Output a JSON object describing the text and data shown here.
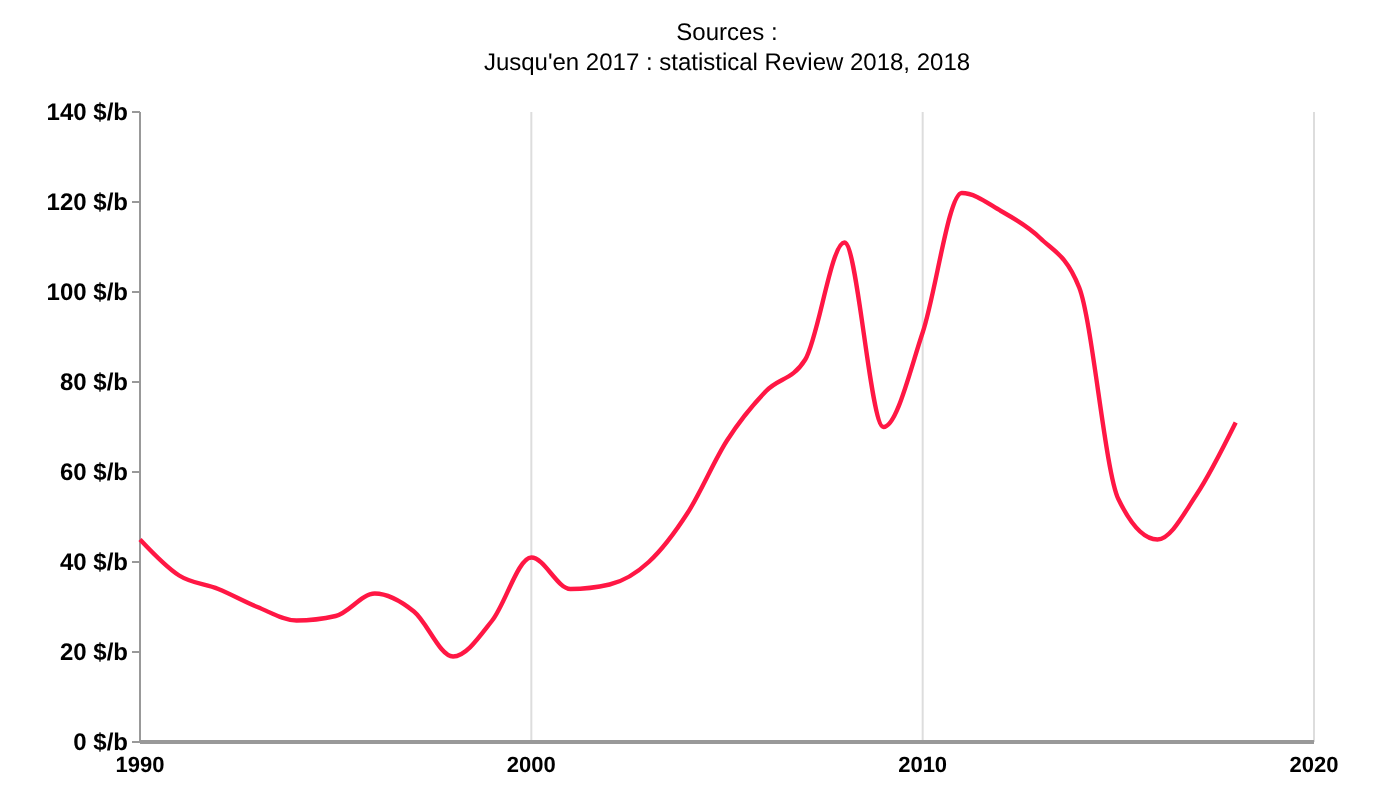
{
  "chart_data": {
    "type": "line",
    "subtitle": "Sources :",
    "annotations": [
      "Jusqu'en 2017 : statistical Review 2018, 2018"
    ],
    "x": [
      1990,
      1991,
      1992,
      1993,
      1994,
      1995,
      1996,
      1997,
      1998,
      1999,
      2000,
      2001,
      2002,
      2003,
      2004,
      2005,
      2006,
      2007,
      2008,
      2009,
      2010,
      2011,
      2012,
      2013,
      2014,
      2015,
      2016,
      2017,
      2018
    ],
    "series": [
      {
        "color": "#ff1744",
        "values": [
          45,
          37,
          34,
          30,
          27,
          28,
          33,
          29,
          19,
          27,
          41,
          34,
          35,
          40,
          51,
          67,
          78,
          85,
          111,
          70,
          91,
          122,
          118,
          112,
          101,
          54,
          45,
          55,
          71
        ]
      }
    ],
    "xlim": [
      1990,
      2020
    ],
    "xticks": [
      1990,
      2000,
      2010,
      2020
    ],
    "ylim": [
      0,
      140
    ],
    "yticks": [
      {
        "value": 0,
        "label": "0 $/b"
      },
      {
        "value": 20,
        "label": "20 $/b"
      },
      {
        "value": 40,
        "label": "40 $/b"
      },
      {
        "value": 60,
        "label": "60 $/b"
      },
      {
        "value": 80,
        "label": "80 $/b"
      },
      {
        "value": 100,
        "label": "100 $/b"
      },
      {
        "value": 120,
        "label": "120 $/b"
      },
      {
        "value": 140,
        "label": "140 $/b"
      }
    ],
    "grid": "x",
    "line_style": "solid",
    "marker": "none"
  }
}
